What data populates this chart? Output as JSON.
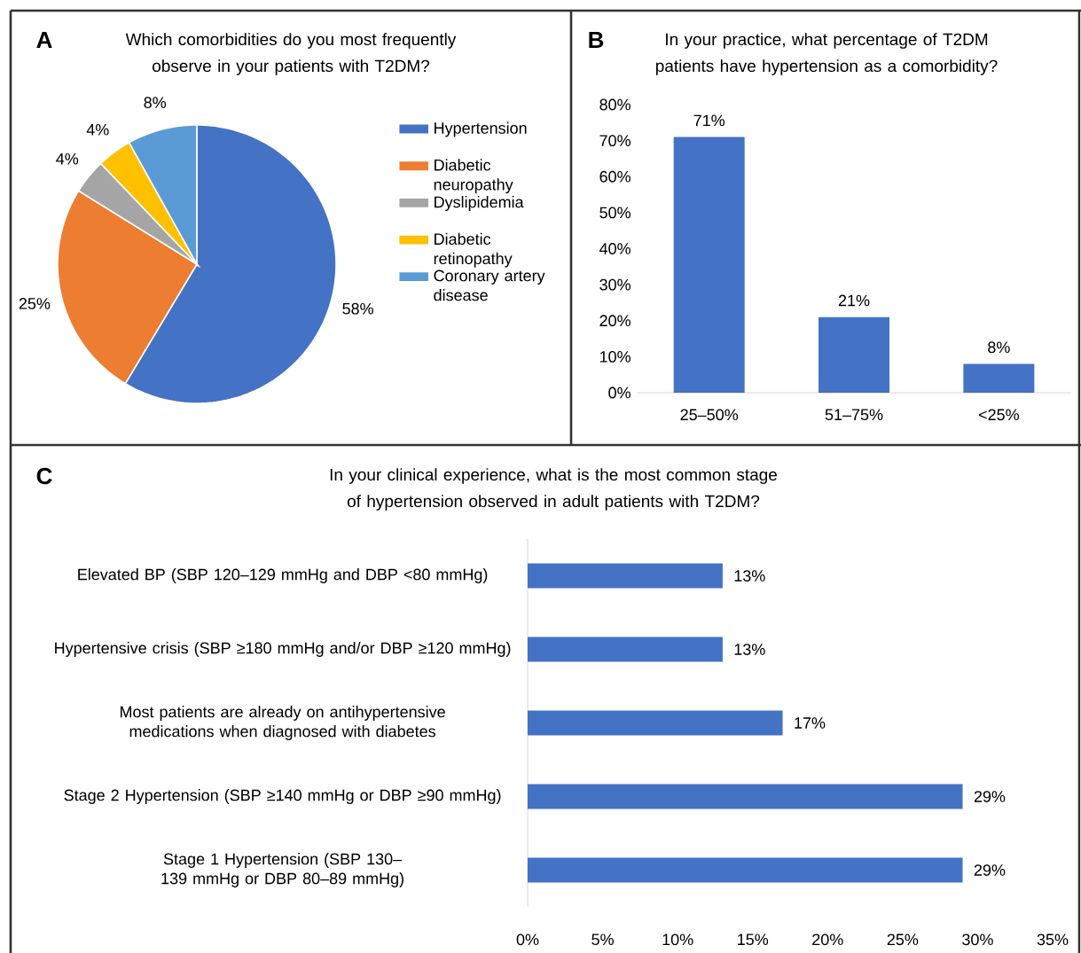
{
  "chart_data": [
    {
      "type": "pie",
      "title": "Which comorbidities do you most frequently observe in your patients with T2DM?",
      "annotations": [
        "A"
      ],
      "categories": [
        "Hypertension",
        "Diabetic neuropathy",
        "Dyslipidemia",
        "Diabetic retinopathy",
        "Coronary artery disease"
      ],
      "values": [
        58,
        25,
        4,
        4,
        8
      ],
      "colors": [
        "#4472c4",
        "#ed7d31",
        "#a5a5a5",
        "#ffc000",
        "#5b9bd5"
      ],
      "value_labels": [
        "58%",
        "25%",
        "4%",
        "4%",
        "8%"
      ],
      "legend": "right"
    },
    {
      "type": "bar",
      "title": "In your practice, what percentage of T2DM patients have hypertension as a comorbidity?",
      "annotations": [
        "B"
      ],
      "categories": [
        "25–50%",
        "51–75%",
        "<25%"
      ],
      "values": [
        71,
        21,
        8
      ],
      "color": "#4472c4",
      "value_labels": [
        "71%",
        "21%",
        "8%"
      ],
      "ylim": [
        0,
        80
      ],
      "yticks": [
        {
          "value": 0,
          "label": "0%"
        },
        {
          "value": 10,
          "label": "10%"
        },
        {
          "value": 20,
          "label": "20%"
        },
        {
          "value": 30,
          "label": "30%"
        },
        {
          "value": 40,
          "label": "40%"
        },
        {
          "value": 50,
          "label": "50%"
        },
        {
          "value": 60,
          "label": "60%"
        },
        {
          "value": 70,
          "label": "70%"
        },
        {
          "value": 80,
          "label": "80%"
        }
      ]
    },
    {
      "type": "bar",
      "orientation": "horizontal",
      "title": "In your clinical experience, what is the most common stage of hypertension observed in adult patients with T2DM?",
      "annotations": [
        "C"
      ],
      "categories": [
        "Elevated BP (SBP 120–129 mmHg and DBP <80 mmHg)",
        "Hypertensive crisis (SBP ≥180 mmHg and/or DBP ≥120 mmHg)",
        "Most patients are already on antihypertensive medications when diagnosed with diabetes",
        "Stage 2 Hypertension (SBP ≥140 mmHg or DBP ≥90 mmHg)",
        "Stage 1 Hypertension (SBP 130–139 mmHg or DBP 80–89 mmHg)"
      ],
      "values": [
        13,
        13,
        17,
        29,
        29
      ],
      "color": "#4472c4",
      "value_labels": [
        "13%",
        "13%",
        "17%",
        "29%",
        "29%"
      ],
      "xlim": [
        0,
        35
      ],
      "xticks": [
        {
          "value": 0,
          "label": "0%"
        },
        {
          "value": 5,
          "label": "5%"
        },
        {
          "value": 10,
          "label": "10%"
        },
        {
          "value": 15,
          "label": "15%"
        },
        {
          "value": 20,
          "label": "20%"
        },
        {
          "value": 25,
          "label": "25%"
        },
        {
          "value": 30,
          "label": "30%"
        },
        {
          "value": 35,
          "label": "35%"
        }
      ]
    }
  ]
}
